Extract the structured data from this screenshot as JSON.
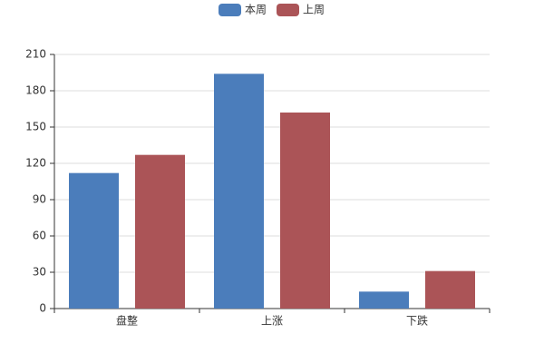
{
  "chart_data": {
    "type": "bar",
    "categories": [
      "盘整",
      "上涨",
      "下跌"
    ],
    "series": [
      {
        "name": "本周",
        "color": "#4b7dbb",
        "values": [
          112,
          194,
          14
        ]
      },
      {
        "name": "上周",
        "color": "#ab5457",
        "values": [
          127,
          162,
          31
        ]
      }
    ],
    "ylim": [
      0,
      210
    ],
    "yticks": [
      0,
      30,
      60,
      90,
      120,
      150,
      180,
      210
    ],
    "grid": true,
    "legend": "top"
  }
}
